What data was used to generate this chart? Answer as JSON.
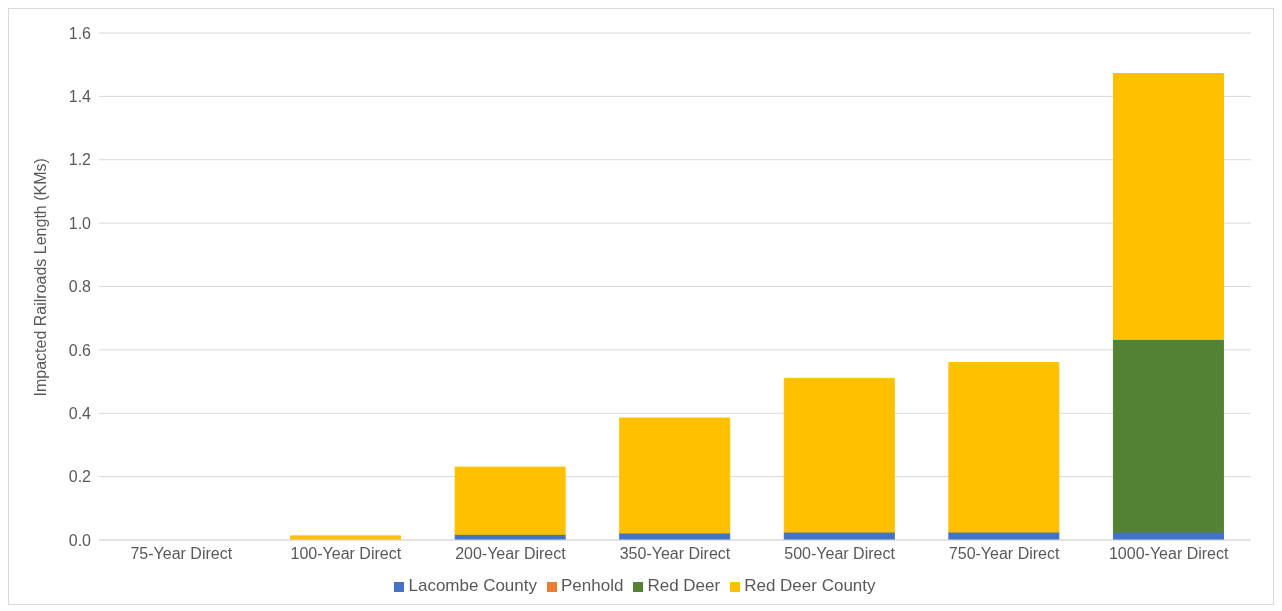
{
  "chart_data": {
    "type": "bar",
    "stacked": true,
    "ylabel": "Impacted Railroads Length (KMs)",
    "categories": [
      "75-Year Direct",
      "100-Year Direct",
      "200-Year Direct",
      "350-Year Direct",
      "500-Year Direct",
      "750-Year Direct",
      "1000-Year Direct"
    ],
    "series": [
      {
        "name": "Lacombe County",
        "color": "#4472c4",
        "values": [
          0,
          0,
          0.018,
          0.022,
          0.025,
          0.025,
          0.025
        ]
      },
      {
        "name": "Penhold",
        "color": "#ed7d31",
        "values": [
          0,
          0,
          0,
          0,
          0,
          0,
          0
        ]
      },
      {
        "name": "Red Deer",
        "color": "#548235",
        "values": [
          0,
          0,
          0,
          0,
          0,
          0,
          0.608
        ]
      },
      {
        "name": "Red Deer County",
        "color": "#ffc000",
        "values": [
          0,
          0.013,
          0.212,
          0.363,
          0.485,
          0.535,
          0.839
        ]
      }
    ],
    "ylim": [
      0,
      1.6
    ],
    "yticks": [
      {
        "value": 0,
        "label": "0.0"
      },
      {
        "value": 0.2,
        "label": "0.2"
      },
      {
        "value": 0.4,
        "label": "0.4"
      },
      {
        "value": 0.6,
        "label": "0.6"
      },
      {
        "value": 0.8,
        "label": "0.8"
      },
      {
        "value": 1,
        "label": "1.0"
      },
      {
        "value": 1.2,
        "label": "1.2"
      },
      {
        "value": 1.4,
        "label": "1.4"
      },
      {
        "value": 1.6,
        "label": "1.6"
      }
    ],
    "grid": "y",
    "legend": "bottom"
  }
}
